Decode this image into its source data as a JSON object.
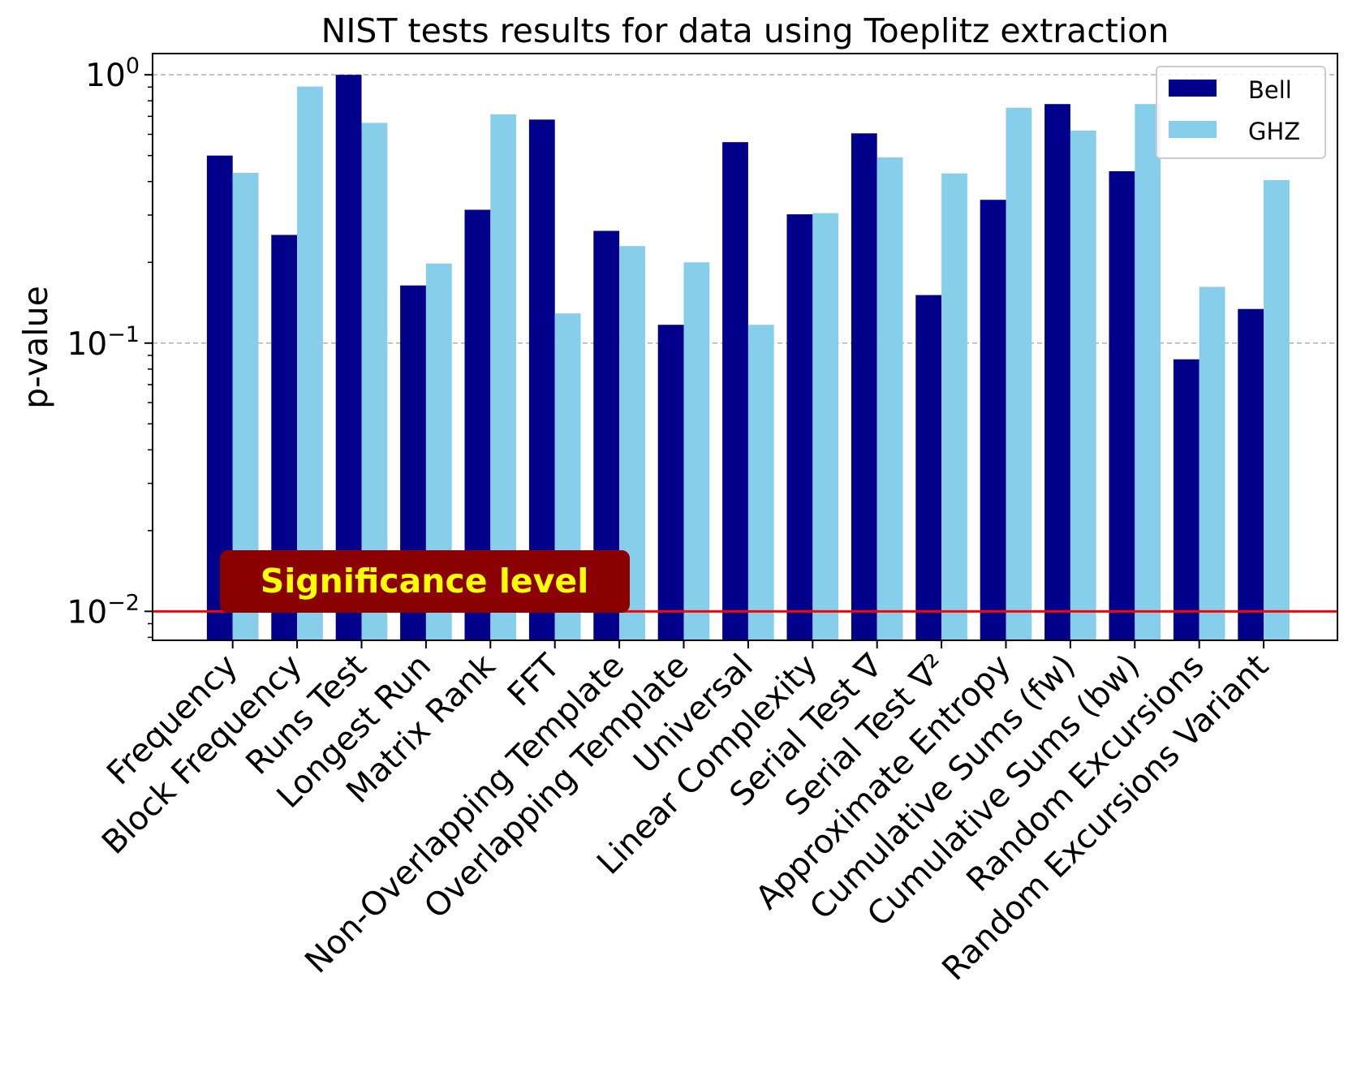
{
  "chart_data": {
    "type": "bar",
    "title": "NIST tests results for data using Toeplitz extraction",
    "xlabel": "",
    "ylabel": "p-value",
    "yscale": "log",
    "ylim": [
      0.0078,
      1.2
    ],
    "yticks": [
      {
        "value": 0.01,
        "base": "10",
        "exp": "−2"
      },
      {
        "value": 0.1,
        "base": "10",
        "exp": "−1"
      },
      {
        "value": 1,
        "base": "10",
        "exp": "0"
      }
    ],
    "grid": "horizontal dashed at major ticks",
    "legend_position": "top-right",
    "categories": [
      "Frequency",
      "Block Frequency",
      "Runs Test",
      "Longest Run",
      "Matrix Rank",
      "FFT",
      "Non-Overlapping Template",
      "Overlapping Template",
      "Universal",
      "Linear Complexity",
      "Serial Test ∇",
      "Serial Test ∇²",
      "Approximate Entropy",
      "Cumulative Sums (fw)",
      "Cumulative Sums (bw)",
      "Random Excursions",
      "Random Excursions Variant"
    ],
    "series": [
      {
        "name": "Bell",
        "color": "#00008b",
        "values": [
          0.5,
          0.253,
          1.0,
          0.164,
          0.314,
          0.681,
          0.262,
          0.117,
          0.561,
          0.302,
          0.605,
          0.151,
          0.342,
          0.778,
          0.437,
          0.087,
          0.134
        ]
      },
      {
        "name": "GHZ",
        "color": "#87ceeb",
        "values": [
          0.431,
          0.904,
          0.662,
          0.198,
          0.712,
          0.129,
          0.23,
          0.2,
          0.117,
          0.305,
          0.492,
          0.429,
          0.754,
          0.62,
          0.778,
          0.162,
          0.405
        ]
      }
    ],
    "threshold": {
      "value": 0.01,
      "color": "#ff0000",
      "label": "Significance level"
    }
  },
  "annotation": {
    "label_color": "#ffff00",
    "box_color": "#8b0000"
  }
}
